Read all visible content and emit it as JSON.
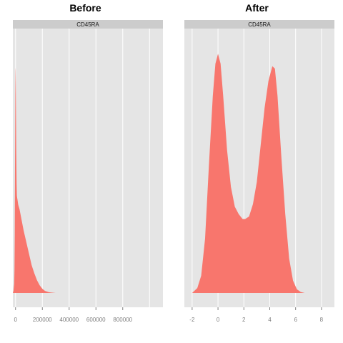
{
  "chart_data": [
    {
      "type": "area",
      "title": "Before",
      "panel_label": "CD45RA",
      "fill_color": "#F8766D",
      "panel_background": "#E5E5E5",
      "strip_background": "#CCCCCC",
      "grid": true,
      "xlim": [
        -20000,
        1100000
      ],
      "ylim": [
        0,
        1.0
      ],
      "x_ticks": [
        0,
        200000,
        400000,
        600000,
        800000
      ],
      "x_tick_labels": [
        "0",
        "200000",
        "400000",
        "600000",
        "800000"
      ],
      "x_minor_grid": [
        1000000
      ],
      "density": {
        "x": [
          -20000,
          -15000,
          -10000,
          -8000,
          -6000,
          -4000,
          -2000,
          0,
          1000,
          2000,
          3000,
          5000,
          8000,
          10000,
          12000,
          15000,
          20000,
          25000,
          30000,
          40000,
          50000,
          60000,
          80000,
          100000,
          120000,
          140000,
          160000,
          180000,
          200000,
          220000,
          250000,
          280000,
          300000
        ],
        "y": [
          0,
          0.01,
          0.04,
          0.1,
          0.25,
          0.55,
          0.85,
          0.97,
          0.96,
          0.9,
          0.8,
          0.62,
          0.47,
          0.42,
          0.41,
          0.4,
          0.38,
          0.37,
          0.36,
          0.33,
          0.3,
          0.27,
          0.22,
          0.17,
          0.12,
          0.085,
          0.055,
          0.033,
          0.018,
          0.009,
          0.003,
          0.001,
          0
        ]
      }
    },
    {
      "type": "area",
      "title": "After",
      "panel_label": "CD45RA",
      "fill_color": "#F8766D",
      "panel_background": "#E5E5E5",
      "strip_background": "#CCCCCC",
      "grid": true,
      "xlim": [
        -2.6,
        9.0
      ],
      "ylim": [
        0,
        1.0
      ],
      "x_ticks": [
        -2,
        0,
        2,
        4,
        6,
        8
      ],
      "x_tick_labels": [
        "-2",
        "0",
        "2",
        "4",
        "6",
        "8"
      ],
      "density": {
        "x": [
          -2.0,
          -1.6,
          -1.3,
          -1.0,
          -0.7,
          -0.4,
          -0.2,
          0.0,
          0.2,
          0.4,
          0.7,
          1.0,
          1.3,
          1.6,
          1.9,
          2.1,
          2.4,
          2.7,
          3.0,
          3.3,
          3.6,
          3.9,
          4.2,
          4.4,
          4.6,
          4.9,
          5.2,
          5.5,
          5.8,
          6.1,
          6.4,
          6.7
        ],
        "y": [
          0.0,
          0.02,
          0.07,
          0.22,
          0.52,
          0.8,
          0.93,
          0.97,
          0.93,
          0.8,
          0.58,
          0.43,
          0.35,
          0.32,
          0.3,
          0.3,
          0.31,
          0.36,
          0.45,
          0.6,
          0.75,
          0.86,
          0.92,
          0.91,
          0.8,
          0.55,
          0.32,
          0.14,
          0.05,
          0.015,
          0.004,
          0.0
        ]
      }
    }
  ]
}
